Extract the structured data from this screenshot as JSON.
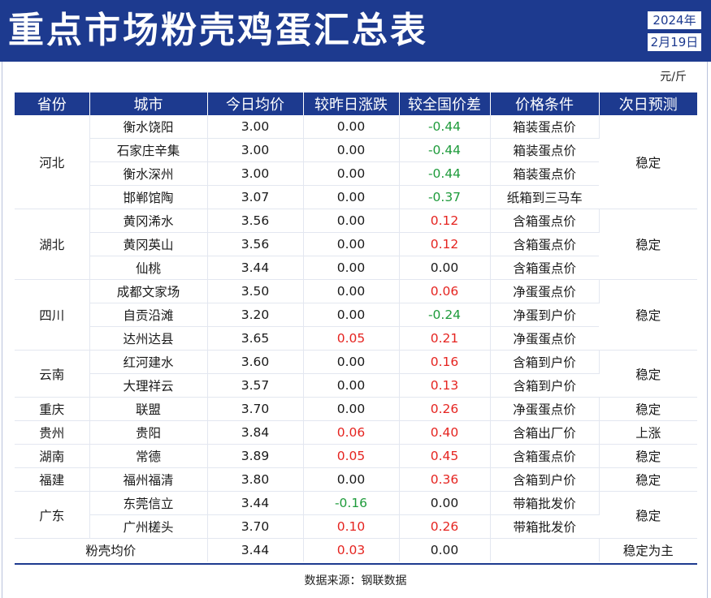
{
  "title": "重点市场粉壳鸡蛋汇总表",
  "date": {
    "year": "2024年",
    "day": "2月19日"
  },
  "unit": "元/斤",
  "columns": [
    "省份",
    "城市",
    "今日均价",
    "较昨日涨跌",
    "较全国价差",
    "价格条件",
    "次日预测"
  ],
  "groups": [
    {
      "province": "河北",
      "forecast": "稳定",
      "rows": [
        {
          "city": "衡水饶阳",
          "price": "3.00",
          "change": "0.00",
          "diff": "-0.44",
          "condition": "箱装蛋点价"
        },
        {
          "city": "石家庄辛集",
          "price": "3.00",
          "change": "0.00",
          "diff": "-0.44",
          "condition": "箱装蛋点价"
        },
        {
          "city": "衡水深州",
          "price": "3.00",
          "change": "0.00",
          "diff": "-0.44",
          "condition": "箱装蛋点价"
        },
        {
          "city": "邯郸馆陶",
          "price": "3.07",
          "change": "0.00",
          "diff": "-0.37",
          "condition": "纸箱到三马车"
        }
      ]
    },
    {
      "province": "湖北",
      "forecast": "稳定",
      "rows": [
        {
          "city": "黄冈浠水",
          "price": "3.56",
          "change": "0.00",
          "diff": "0.12",
          "condition": "含箱蛋点价"
        },
        {
          "city": "黄冈英山",
          "price": "3.56",
          "change": "0.00",
          "diff": "0.12",
          "condition": "含箱蛋点价"
        },
        {
          "city": "仙桃",
          "price": "3.44",
          "change": "0.00",
          "diff": "0.00",
          "condition": "含箱蛋点价"
        }
      ]
    },
    {
      "province": "四川",
      "forecast": "稳定",
      "rows": [
        {
          "city": "成都文家场",
          "price": "3.50",
          "change": "0.00",
          "diff": "0.06",
          "condition": "净蛋蛋点价"
        },
        {
          "city": "自贡沿滩",
          "price": "3.20",
          "change": "0.00",
          "diff": "-0.24",
          "condition": "净蛋到户价"
        },
        {
          "city": "达州达县",
          "price": "3.65",
          "change": "0.05",
          "diff": "0.21",
          "condition": "净蛋蛋点价"
        }
      ]
    },
    {
      "province": "云南",
      "forecast": "稳定",
      "rows": [
        {
          "city": "红河建水",
          "price": "3.60",
          "change": "0.00",
          "diff": "0.16",
          "condition": "含箱到户价"
        },
        {
          "city": "大理祥云",
          "price": "3.57",
          "change": "0.00",
          "diff": "0.13",
          "condition": "含箱到户价"
        }
      ]
    },
    {
      "province": "重庆",
      "forecast": "稳定",
      "rows": [
        {
          "city": "联盟",
          "price": "3.70",
          "change": "0.00",
          "diff": "0.26",
          "condition": "净蛋蛋点价"
        }
      ]
    },
    {
      "province": "贵州",
      "forecast": "上涨",
      "rows": [
        {
          "city": "贵阳",
          "price": "3.84",
          "change": "0.06",
          "diff": "0.40",
          "condition": "含箱出厂价"
        }
      ]
    },
    {
      "province": "湖南",
      "forecast": "稳定",
      "rows": [
        {
          "city": "常德",
          "price": "3.89",
          "change": "0.05",
          "diff": "0.45",
          "condition": "含箱蛋点价"
        }
      ]
    },
    {
      "province": "福建",
      "forecast": "稳定",
      "rows": [
        {
          "city": "福州福清",
          "price": "3.80",
          "change": "0.00",
          "diff": "0.36",
          "condition": "含箱到户价"
        }
      ]
    },
    {
      "province": "广东",
      "forecast": "稳定",
      "rows": [
        {
          "city": "东莞信立",
          "price": "3.44",
          "change": "-0.16",
          "diff": "0.00",
          "condition": "带箱批发价"
        },
        {
          "city": "广州槎头",
          "price": "3.70",
          "change": "0.10",
          "diff": "0.26",
          "condition": "带箱批发价"
        }
      ]
    }
  ],
  "average": {
    "label": "粉壳均价",
    "price": "3.44",
    "change": "0.03",
    "diff": "0.00",
    "condition": "",
    "forecast": "稳定为主"
  },
  "source": "数据来源：钢联数据",
  "colors": {
    "header_bg": "#1d3a8f",
    "negative": "#1e9b3b",
    "positive": "#e52420"
  }
}
